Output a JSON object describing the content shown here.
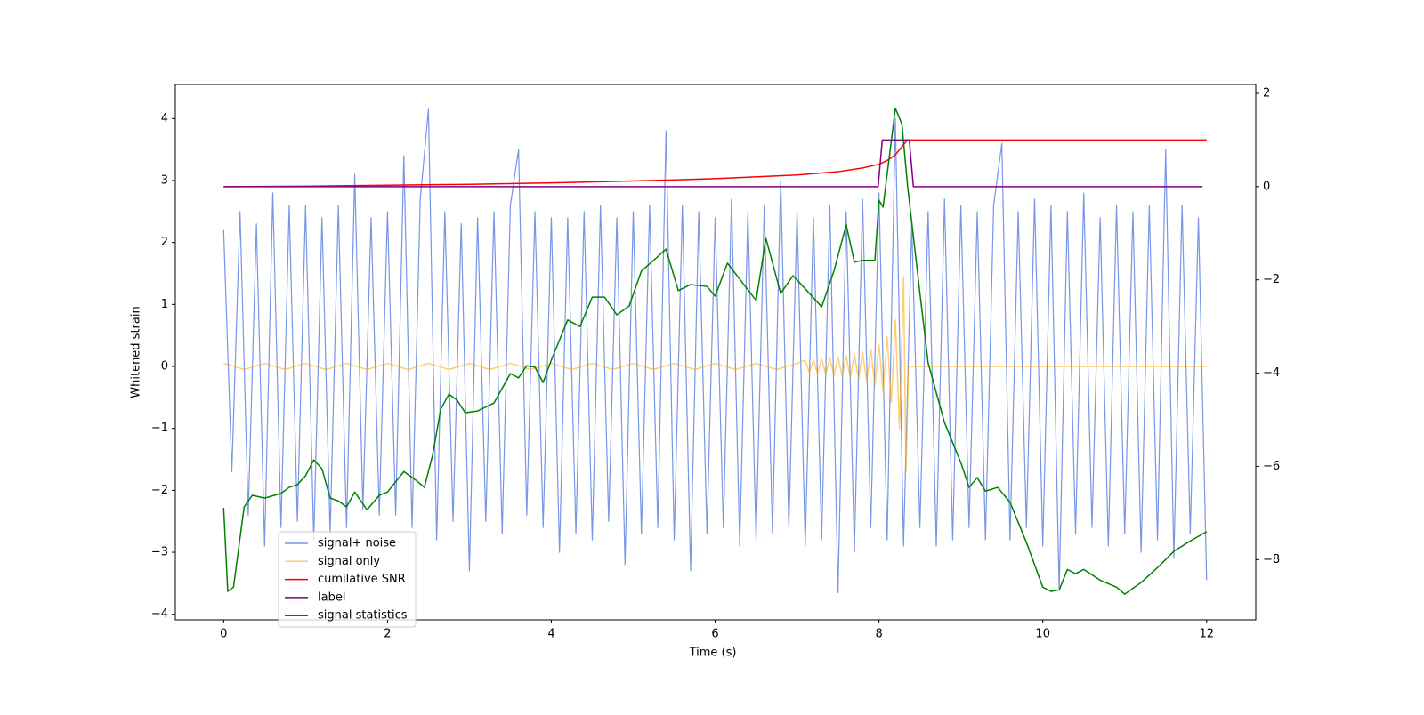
{
  "chart_data": {
    "type": "line",
    "xlabel": "Time (s)",
    "ylabel": "Whitened strain",
    "xlim": [
      -0.59,
      12.6
    ],
    "ylim": [
      -4.09,
      4.55
    ],
    "y2lim": [
      -9.29,
      2.19
    ],
    "xticks": [
      0,
      2,
      4,
      6,
      8,
      10,
      12
    ],
    "yticks": [
      {
        "value": -4,
        "label": "−4"
      },
      {
        "value": -3,
        "label": "−3"
      },
      {
        "value": -2,
        "label": "−2"
      },
      {
        "value": -1,
        "label": "−1"
      },
      0,
      1,
      2,
      3,
      4
    ],
    "y2ticks": [
      {
        "value": -8,
        "label": "−8"
      },
      {
        "value": -6,
        "label": "−6"
      },
      {
        "value": -4,
        "label": "−4"
      },
      {
        "value": -2,
        "label": "−2"
      },
      0,
      2
    ],
    "legend": "lower left",
    "series": [
      {
        "name": "signal+ noise",
        "color": "#7895e6",
        "x": [
          0,
          0.1,
          0.2,
          0.3,
          0.4,
          0.5,
          0.6,
          0.7,
          0.8,
          0.9,
          1,
          1.1,
          1.2,
          1.3,
          1.4,
          1.5,
          1.6,
          1.7,
          1.8,
          1.9,
          2,
          2.1,
          2.2,
          2.3,
          2.4,
          2.5,
          2.6,
          2.7,
          2.8,
          2.9,
          3,
          3.1,
          3.2,
          3.3,
          3.4,
          3.5,
          3.6,
          3.7,
          3.8,
          3.9,
          4,
          4.1,
          4.2,
          4.3,
          4.4,
          4.5,
          4.6,
          4.7,
          4.8,
          4.9,
          5,
          5.1,
          5.2,
          5.3,
          5.4,
          5.5,
          5.6,
          5.7,
          5.8,
          5.9,
          6,
          6.1,
          6.2,
          6.3,
          6.4,
          6.5,
          6.6,
          6.7,
          6.8,
          6.9,
          7,
          7.1,
          7.2,
          7.3,
          7.4,
          7.5,
          7.6,
          7.7,
          7.8,
          7.9,
          8,
          8.1,
          8.2,
          8.3,
          8.4,
          8.5,
          8.6,
          8.7,
          8.8,
          8.9,
          9,
          9.1,
          9.2,
          9.3,
          9.4,
          9.5,
          9.6,
          9.7,
          9.8,
          9.9,
          10,
          10.1,
          10.2,
          10.3,
          10.4,
          10.5,
          10.6,
          10.7,
          10.8,
          10.9,
          11,
          11.1,
          11.2,
          11.3,
          11.4,
          11.5,
          11.6,
          11.7,
          11.8,
          11.9,
          12
        ],
        "values": [
          2.2,
          -1.7,
          2.5,
          -2.4,
          2.3,
          -2.9,
          2.8,
          -2.6,
          2.6,
          -2.5,
          2.6,
          -2.8,
          2.4,
          -2.7,
          2.6,
          -2.6,
          3.1,
          -2.3,
          2.4,
          -2.4,
          2.5,
          -2.4,
          3.4,
          -2.6,
          2.7,
          4.15,
          -2.8,
          2.5,
          -2.5,
          2.3,
          -3.3,
          2.4,
          -2.5,
          2.5,
          -2.7,
          2.6,
          3.5,
          -2.4,
          2.5,
          -2.6,
          2.4,
          -3.0,
          2.4,
          -2.7,
          2.5,
          -2.8,
          2.6,
          -2.5,
          2.4,
          -3.2,
          2.5,
          -2.7,
          2.6,
          -2.6,
          3.8,
          -2.8,
          2.6,
          -3.3,
          2.5,
          -2.7,
          2.4,
          -2.6,
          2.7,
          -2.9,
          2.5,
          -2.8,
          2.6,
          -2.7,
          3.0,
          -2.6,
          2.5,
          -2.9,
          2.4,
          -2.8,
          2.6,
          -3.65,
          2.5,
          -3.0,
          2.7,
          -2.6,
          2.8,
          -2.8,
          4.0,
          -2.9,
          2.3,
          -2.6,
          2.5,
          -2.9,
          2.7,
          -2.8,
          2.6,
          -2.6,
          2.5,
          -2.8,
          2.6,
          3.6,
          -2.8,
          2.5,
          -2.6,
          2.7,
          -2.9,
          2.6,
          -3.6,
          2.5,
          -2.7,
          2.8,
          -2.6,
          2.4,
          -2.9,
          2.6,
          -2.7,
          2.5,
          -3.0,
          2.6,
          -2.8,
          3.5,
          -3.1,
          2.6,
          -2.7,
          2.4,
          -3.45
        ]
      },
      {
        "name": "signal only",
        "color": "#ffa500",
        "x": [
          0,
          0.25,
          0.5,
          0.75,
          1,
          1.25,
          1.5,
          1.75,
          2,
          2.25,
          2.5,
          2.75,
          3,
          3.25,
          3.5,
          3.75,
          4,
          4.25,
          4.5,
          4.75,
          5,
          5.25,
          5.5,
          5.75,
          6,
          6.25,
          6.5,
          6.75,
          7,
          7.1,
          7.15,
          7.2,
          7.25,
          7.3,
          7.35,
          7.4,
          7.45,
          7.5,
          7.55,
          7.6,
          7.65,
          7.7,
          7.75,
          7.8,
          7.85,
          7.9,
          7.95,
          8,
          8.05,
          8.1,
          8.15,
          8.2,
          8.25,
          8.3,
          8.33,
          8.36,
          12
        ],
        "values": [
          0.05,
          -0.05,
          0.05,
          -0.05,
          0.05,
          -0.05,
          0.05,
          -0.05,
          0.05,
          -0.05,
          0.05,
          -0.05,
          0.05,
          -0.05,
          0.05,
          -0.05,
          0.05,
          -0.05,
          0.05,
          -0.05,
          0.05,
          -0.05,
          0.05,
          -0.05,
          0.05,
          -0.05,
          0.05,
          -0.05,
          0.05,
          0.1,
          -0.1,
          0.11,
          -0.11,
          0.12,
          -0.12,
          0.13,
          -0.14,
          0.15,
          -0.16,
          0.17,
          -0.18,
          0.2,
          -0.21,
          0.23,
          -0.25,
          0.28,
          -0.31,
          0.35,
          -0.4,
          0.48,
          -0.58,
          0.75,
          -1.0,
          1.45,
          -1.7,
          0,
          0
        ]
      },
      {
        "name": "cumilative SNR",
        "color": "#ff0000",
        "axis": "y2",
        "x": [
          0,
          1,
          2,
          3,
          4,
          5,
          6,
          7,
          7.5,
          7.8,
          8,
          8.1,
          8.2,
          8.3,
          8.35,
          12
        ],
        "values": [
          0,
          0.01,
          0.03,
          0.05,
          0.08,
          0.12,
          0.17,
          0.25,
          0.32,
          0.4,
          0.48,
          0.56,
          0.68,
          0.9,
          1,
          1
        ]
      },
      {
        "name": "label",
        "color": "#800080",
        "axis": "y2",
        "x": [
          0,
          7.99,
          8.04,
          8.37,
          8.42,
          11.95
        ],
        "values": [
          0,
          0,
          1,
          1,
          0,
          0
        ]
      },
      {
        "name": "signal statistics",
        "color": "#008000",
        "axis": "y2",
        "x": [
          0,
          0.05,
          0.12,
          0.25,
          0.35,
          0.5,
          0.7,
          0.8,
          0.9,
          1,
          1.1,
          1.2,
          1.3,
          1.4,
          1.5,
          1.6,
          1.75,
          1.9,
          2,
          2.2,
          2.35,
          2.45,
          2.55,
          2.65,
          2.75,
          2.85,
          2.95,
          3.1,
          3.3,
          3.5,
          3.6,
          3.7,
          3.8,
          3.9,
          4,
          4.2,
          4.35,
          4.5,
          4.65,
          4.8,
          4.95,
          5.1,
          5.25,
          5.4,
          5.55,
          5.7,
          5.9,
          6,
          6.15,
          6.35,
          6.5,
          6.62,
          6.8,
          6.95,
          7.1,
          7.3,
          7.45,
          7.6,
          7.7,
          7.8,
          7.95,
          8,
          8.05,
          8.2,
          8.28,
          8.35,
          8.5,
          8.6,
          8.8,
          9,
          9.1,
          9.2,
          9.3,
          9.45,
          9.6,
          9.8,
          10,
          10.1,
          10.2,
          10.3,
          10.4,
          10.5,
          10.7,
          10.9,
          11,
          11.2,
          11.4,
          11.6,
          11.8,
          12
        ],
        "values": [
          -6.89,
          -8.68,
          -8.59,
          -6.87,
          -6.62,
          -6.68,
          -6.58,
          -6.45,
          -6.39,
          -6.2,
          -5.86,
          -6.05,
          -6.68,
          -6.74,
          -6.87,
          -6.55,
          -6.93,
          -6.62,
          -6.55,
          -6.11,
          -6.3,
          -6.45,
          -5.76,
          -4.77,
          -4.45,
          -4.58,
          -4.85,
          -4.81,
          -4.64,
          -4.01,
          -4.1,
          -3.84,
          -3.87,
          -4.2,
          -3.72,
          -2.86,
          -3.0,
          -2.37,
          -2.37,
          -2.75,
          -2.56,
          -1.81,
          -1.58,
          -1.34,
          -2.23,
          -2.1,
          -2.14,
          -2.35,
          -1.64,
          -2.1,
          -2.44,
          -1.11,
          -2.29,
          -1.91,
          -2.19,
          -2.58,
          -1.81,
          -0.82,
          -1.62,
          -1.58,
          -1.58,
          -0.29,
          -0.44,
          1.68,
          1.34,
          0,
          -2.29,
          -3.78,
          -5.06,
          -5.92,
          -6.45,
          -6.24,
          -6.53,
          -6.45,
          -6.77,
          -7.63,
          -8.59,
          -8.68,
          -8.65,
          -8.21,
          -8.3,
          -8.21,
          -8.44,
          -8.59,
          -8.74,
          -8.49,
          -8.17,
          -7.82,
          -7.6,
          -7.4
        ]
      }
    ]
  }
}
